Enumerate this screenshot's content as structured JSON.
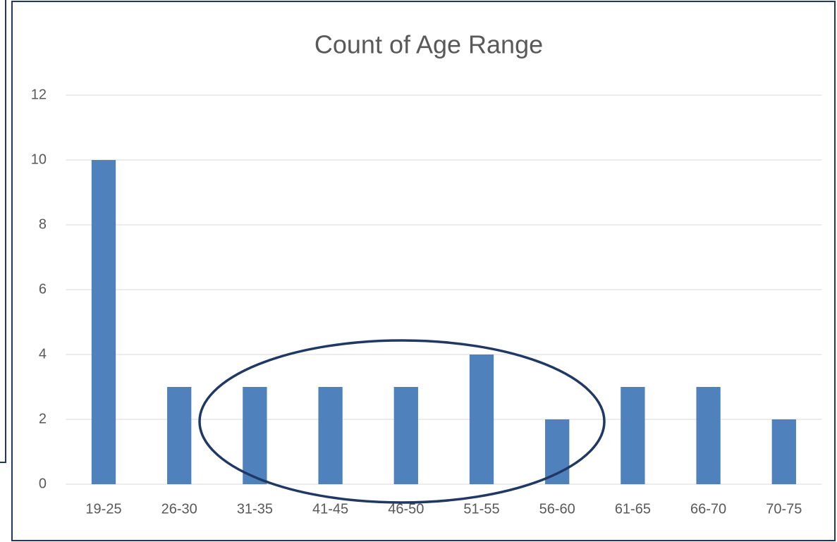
{
  "chart_data": {
    "type": "bar",
    "title": "Count of Age Range",
    "categories": [
      "19-25",
      "26-30",
      "31-35",
      "41-45",
      "46-50",
      "51-55",
      "56-60",
      "61-65",
      "66-70",
      "70-75"
    ],
    "values": [
      10,
      3,
      3,
      3,
      3,
      4,
      2,
      3,
      3,
      2
    ],
    "color": "#4f81bd",
    "ylim": [
      0,
      12
    ],
    "yticks": [
      0,
      2,
      4,
      6,
      8,
      10,
      12
    ],
    "grid": true
  }
}
